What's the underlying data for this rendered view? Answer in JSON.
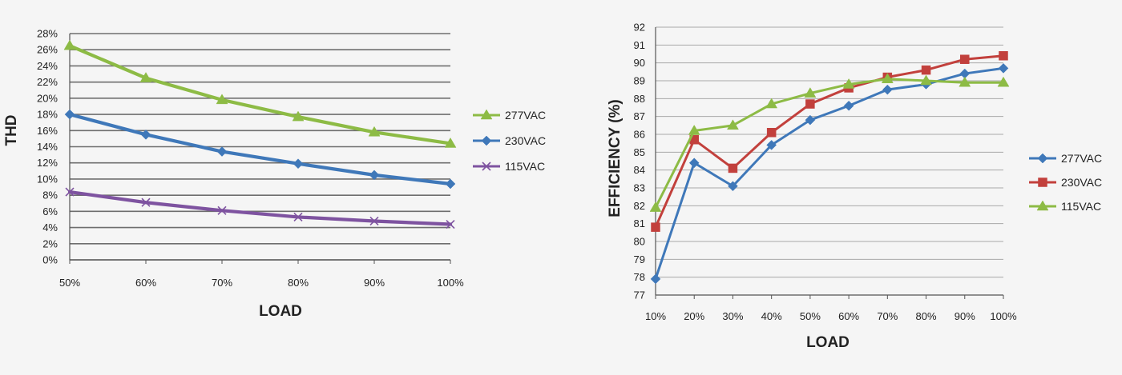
{
  "chart_data": [
    {
      "type": "line",
      "xlabel": "LOAD",
      "ylabel": "THD",
      "categories": [
        "50%",
        "60%",
        "70%",
        "80%",
        "90%",
        "100%"
      ],
      "ylim": [
        0,
        28
      ],
      "yticks": [
        "0%",
        "2%",
        "4%",
        "6%",
        "8%",
        "10%",
        "12%",
        "14%",
        "16%",
        "18%",
        "20%",
        "22%",
        "24%",
        "26%",
        "28%"
      ],
      "grid": true,
      "legend_position": "right",
      "series": [
        {
          "name": "277VAC",
          "color": "#8dbb45",
          "marker": "triangle",
          "values": [
            26.5,
            22.5,
            19.8,
            17.7,
            15.8,
            14.4
          ]
        },
        {
          "name": "230VAC",
          "color": "#3f78b9",
          "marker": "diamond",
          "values": [
            18.0,
            15.5,
            13.4,
            11.9,
            10.5,
            9.4
          ]
        },
        {
          "name": "115VAC",
          "color": "#7e53a0",
          "marker": "x",
          "values": [
            8.4,
            7.1,
            6.1,
            5.3,
            4.8,
            4.4
          ]
        }
      ]
    },
    {
      "type": "line",
      "xlabel": "LOAD",
      "ylabel": "EFFICIENCY (%)",
      "categories": [
        "10%",
        "20%",
        "30%",
        "40%",
        "50%",
        "60%",
        "70%",
        "80%",
        "90%",
        "100%"
      ],
      "ylim": [
        77,
        92
      ],
      "yticks": [
        "77",
        "78",
        "79",
        "80",
        "81",
        "82",
        "83",
        "84",
        "85",
        "86",
        "87",
        "88",
        "89",
        "90",
        "91",
        "92"
      ],
      "grid": true,
      "legend_position": "right",
      "series": [
        {
          "name": "277VAC",
          "color": "#3f78b9",
          "marker": "diamond",
          "values": [
            77.9,
            84.4,
            83.1,
            85.4,
            86.8,
            87.6,
            88.5,
            88.8,
            89.4,
            89.7
          ]
        },
        {
          "name": "230VAC",
          "color": "#c2403c",
          "marker": "square",
          "values": [
            80.8,
            85.7,
            84.1,
            86.1,
            87.7,
            88.6,
            89.2,
            89.6,
            90.2,
            90.4
          ]
        },
        {
          "name": "115VAC",
          "color": "#8dbb45",
          "marker": "triangle",
          "values": [
            81.9,
            86.2,
            86.5,
            87.7,
            88.3,
            88.8,
            89.1,
            89.0,
            88.9,
            88.9
          ]
        }
      ]
    }
  ]
}
